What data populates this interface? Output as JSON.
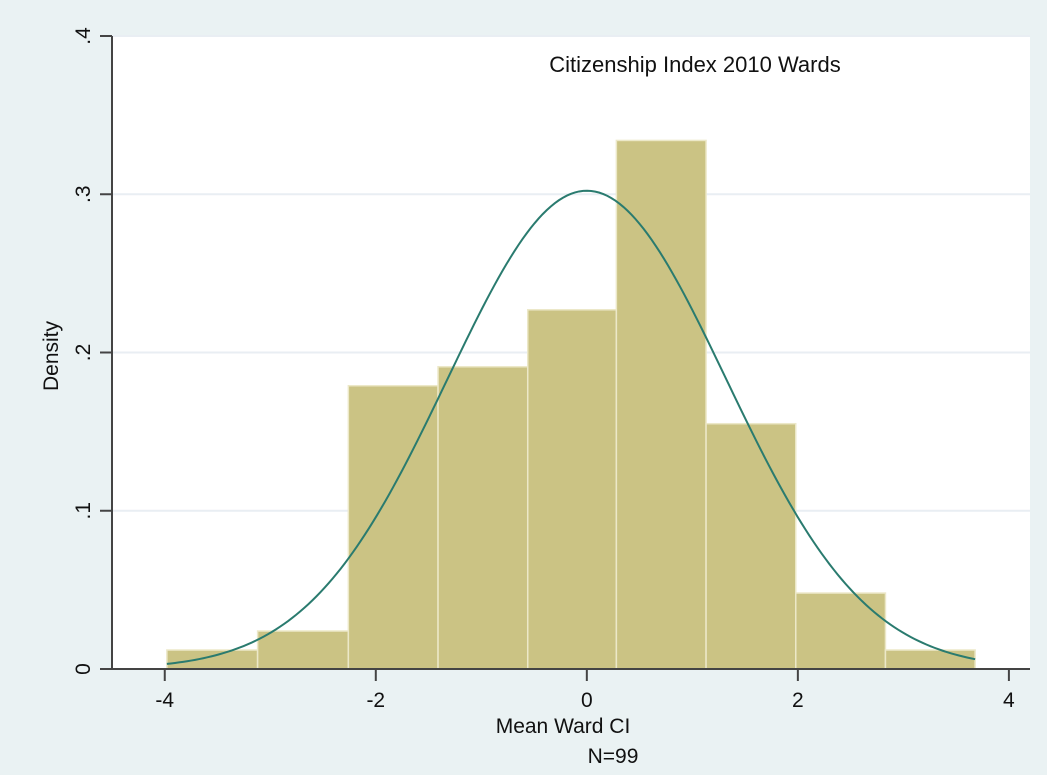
{
  "chart_data": {
    "type": "bar",
    "title": "Citizenship Index 2010 Wards",
    "xlabel": "Mean Ward CI",
    "note": "N=99",
    "ylabel": "Density",
    "xlim": [
      -4.5,
      4.2
    ],
    "ylim": [
      0,
      0.4
    ],
    "x_ticks": [
      {
        "value": -4,
        "label": "-4"
      },
      {
        "value": -2,
        "label": "-2"
      },
      {
        "value": 0,
        "label": "0"
      },
      {
        "value": 2,
        "label": "2"
      },
      {
        "value": 4,
        "label": "4"
      }
    ],
    "y_ticks": [
      {
        "value": 0,
        "label": "0"
      },
      {
        "value": 0.1,
        "label": ".1"
      },
      {
        "value": 0.2,
        "label": ".2"
      },
      {
        "value": 0.3,
        "label": ".3"
      },
      {
        "value": 0.4,
        "label": ".4"
      }
    ],
    "bins": [
      {
        "start": -3.98,
        "end": -3.12,
        "density": 0.012
      },
      {
        "start": -3.12,
        "end": -2.26,
        "density": 0.024
      },
      {
        "start": -2.26,
        "end": -1.41,
        "density": 0.179
      },
      {
        "start": -1.41,
        "end": -0.56,
        "density": 0.191
      },
      {
        "start": -0.56,
        "end": 0.28,
        "density": 0.227
      },
      {
        "start": 0.28,
        "end": 1.13,
        "density": 0.334
      },
      {
        "start": 1.13,
        "end": 1.98,
        "density": 0.155
      },
      {
        "start": 1.98,
        "end": 2.83,
        "density": 0.048
      },
      {
        "start": 2.83,
        "end": 3.68,
        "density": 0.012
      }
    ],
    "normal_curve": {
      "mean": 0,
      "sd": 1.32,
      "x_range": [
        -3.98,
        3.68
      ]
    },
    "grid": "horizontal",
    "colors": {
      "background": "#eaf2f3",
      "plot_background": "#ffffff",
      "bar_fill": "#cbc384",
      "bar_edge": "#ece8c8",
      "curve": "#2a7b6f",
      "grid": "#e9eef3",
      "axis": "#444444"
    }
  }
}
